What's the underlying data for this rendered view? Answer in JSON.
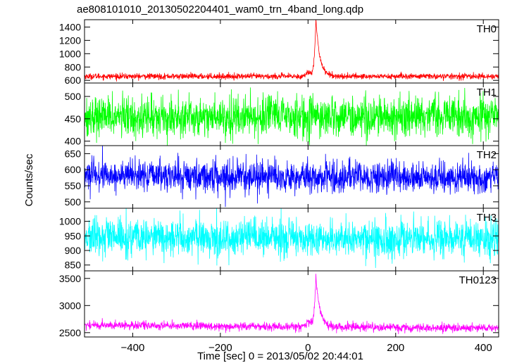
{
  "chart_data": {
    "type": "line",
    "title": "ae808101010_20130502204401_wam0_trn_4band_long.qdp",
    "xlabel": "Time [sec] 0 = 2013/05/02 20:44:01",
    "ylabel": "Counts/sec",
    "xlim": [
      -510,
      435
    ],
    "xticks": [
      -400,
      -200,
      0,
      200,
      400
    ],
    "xtick_labels": [
      "−400",
      "−200",
      "0",
      "200",
      "400"
    ],
    "grid": false,
    "series": [
      {
        "name": "TH0",
        "color": "#ff0000",
        "ylim": [
          560,
          1510
        ],
        "yticks": [
          600,
          800,
          1000,
          1200,
          1400
        ],
        "baseline": 660,
        "noise": 22,
        "trend": 0,
        "peak": {
          "x": 18,
          "height": 840,
          "rise": 4,
          "decay": 9
        },
        "precursor": {
          "x": 2,
          "height": 60,
          "width": 6
        }
      },
      {
        "name": "TH1",
        "color": "#00ff00",
        "ylim": [
          390,
          530
        ],
        "yticks": [
          400,
          450,
          500
        ],
        "baseline": 455,
        "noise": 22,
        "trend": 0,
        "peak": null,
        "precursor": null
      },
      {
        "name": "TH2",
        "color": "#0000ff",
        "ylim": [
          480,
          675
        ],
        "yticks": [
          500,
          550,
          600,
          650
        ],
        "baseline": 583,
        "noise": 24,
        "trend": -10,
        "peak": null,
        "precursor": null
      },
      {
        "name": "TH3",
        "color": "#00ffff",
        "ylim": [
          830,
          1045
        ],
        "yticks": [
          850,
          900,
          950,
          1000
        ],
        "baseline": 945,
        "noise": 32,
        "trend": -8,
        "peak": null,
        "precursor": null
      },
      {
        "name": "TH0123",
        "color": "#ff00ff",
        "ylim": [
          2420,
          3640
        ],
        "yticks": [
          2500,
          3000,
          3500
        ],
        "baseline": 2640,
        "noise": 38,
        "trend": -60,
        "peak": {
          "x": 18,
          "height": 930,
          "rise": 4,
          "decay": 9
        },
        "precursor": {
          "x": 2,
          "height": 80,
          "width": 6
        }
      }
    ]
  }
}
